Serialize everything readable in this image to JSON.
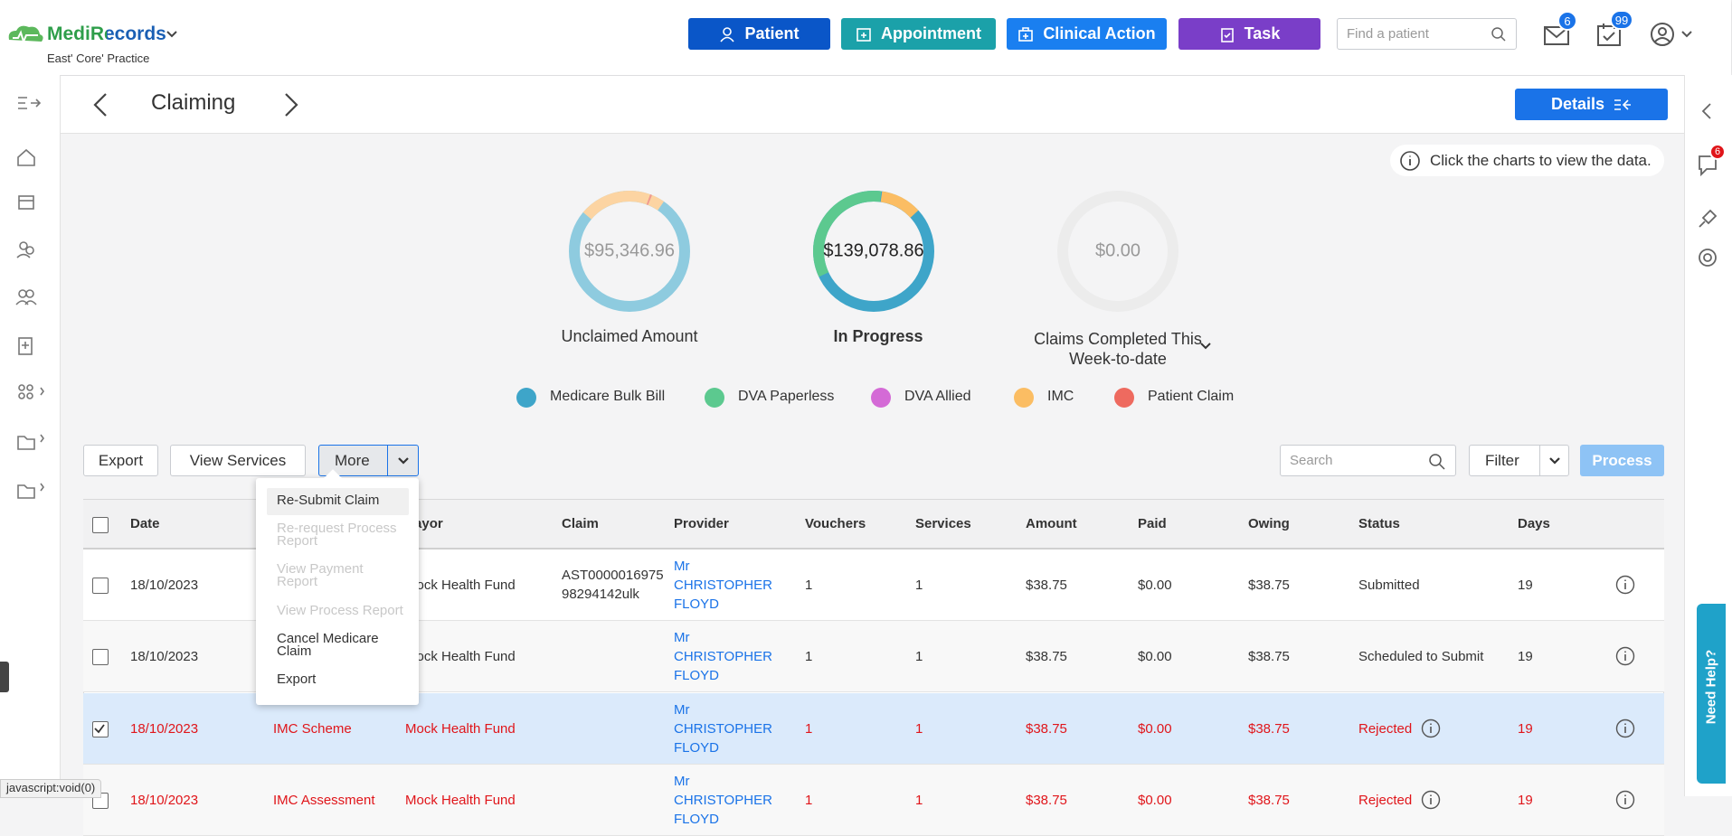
{
  "header": {
    "brand": "MediRecords",
    "practice": "East' Core' Practice",
    "buttons": [
      "Patient",
      "Appointment",
      "Clinical Action",
      "Task"
    ],
    "search_placeholder": "Find a patient",
    "mail_badge": 6,
    "tasks_badge": 99
  },
  "page": {
    "title": "Claiming",
    "details_button": "Details",
    "info": "Click the charts to view the data."
  },
  "summary": [
    {
      "amount": "$95,346.96",
      "label": "Unclaimed Amount"
    },
    {
      "amount": "$139,078.86",
      "label": "In Progress"
    },
    {
      "amount": "$0.00",
      "label": "Claims Completed This Week-to-date"
    }
  ],
  "legend": [
    {
      "name": "Medicare Bulk Bill",
      "color": "#3ea5c9"
    },
    {
      "name": "DVA Paperless",
      "color": "#5cc98f"
    },
    {
      "name": "DVA Allied",
      "color": "#d46ad6"
    },
    {
      "name": "IMC",
      "color": "#fbbd63"
    },
    {
      "name": "Patient Claim",
      "color": "#ee6a5f"
    }
  ],
  "toolbar": {
    "export": "Export",
    "view_services": "View Services",
    "more": "More",
    "search_placeholder": "Search",
    "filter": "Filter",
    "process": "Process"
  },
  "menu": [
    {
      "label": "Re-Submit Claim",
      "disabled": false
    },
    {
      "label": "Re-request Process Report",
      "disabled": true
    },
    {
      "label": "View Payment Report",
      "disabled": true
    },
    {
      "label": "View Process Report",
      "disabled": true
    },
    {
      "label": "Cancel Medicare Claim",
      "disabled": false
    },
    {
      "label": "Export",
      "disabled": false
    }
  ],
  "table": {
    "columns": [
      "Date",
      null,
      "Payor",
      "Claim",
      "Provider",
      "Vouchers",
      "Services",
      "Amount",
      "Paid",
      "Owing",
      "Status",
      "Days"
    ],
    "rows": [
      {
        "checked": false,
        "rejected": false,
        "cells": [
          "18/10/2023",
          null,
          "Mock Health Fund",
          "AST000001697598294142ulk",
          "Mr CHRISTOPHER FLOYD",
          "1",
          "1",
          "$38.75",
          "$0.00",
          "$38.75",
          "Submitted",
          "19"
        ]
      },
      {
        "checked": false,
        "rejected": false,
        "cells": [
          "18/10/2023",
          null,
          "Mock Health Fund",
          null,
          "Mr CHRISTOPHER FLOYD",
          "1",
          "1",
          "$38.75",
          "$0.00",
          "$38.75",
          "Scheduled to Submit",
          "19"
        ]
      },
      {
        "checked": true,
        "rejected": true,
        "cells": [
          "18/10/2023",
          "IMC Scheme",
          "Mock Health Fund",
          null,
          "Mr CHRISTOPHER FLOYD",
          "1",
          "1",
          "$38.75",
          "$0.00",
          "$38.75",
          "Rejected",
          "19"
        ]
      },
      {
        "checked": false,
        "rejected": true,
        "cells": [
          "18/10/2023",
          "IMC Assessment",
          "Mock Health Fund",
          null,
          "Mr CHRISTOPHER FLOYD",
          "1",
          "1",
          "$38.75",
          "$0.00",
          "$38.75",
          "Rejected",
          "19"
        ]
      }
    ]
  },
  "side_badge": 6,
  "help": "Need Help?",
  "status_bar": "javascript:void(0)"
}
